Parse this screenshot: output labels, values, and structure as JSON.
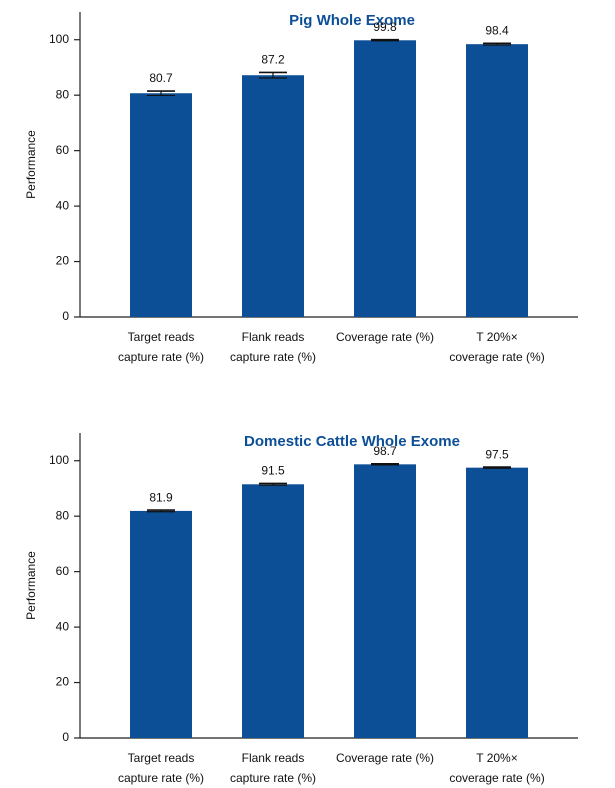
{
  "colors": {
    "bar": "#0d4f97",
    "title": "#0d4f97",
    "axis": "#222222"
  },
  "chart_data": [
    {
      "type": "bar",
      "title": "Pig Whole Exome",
      "ylabel": "Performance",
      "xlabel": "",
      "ylim": [
        0,
        110
      ],
      "yticks": [
        0,
        20,
        40,
        60,
        80,
        100
      ],
      "categories": [
        [
          "Target reads",
          "capture rate (%)"
        ],
        [
          "Flank reads",
          "capture rate (%)"
        ],
        [
          "Coverage rate (%)"
        ],
        [
          "T 20%×",
          "coverage rate (%)"
        ]
      ],
      "values": [
        80.7,
        87.2,
        99.8,
        98.4
      ],
      "value_labels": [
        "80.7",
        "87.2",
        "99.8",
        "98.4"
      ],
      "errors": [
        0.8,
        1.0,
        0.2,
        0.3
      ]
    },
    {
      "type": "bar",
      "title": "Domestic Cattle Whole Exome",
      "ylabel": "Performance",
      "xlabel": "",
      "ylim": [
        0,
        110
      ],
      "yticks": [
        0,
        20,
        40,
        60,
        80,
        100
      ],
      "categories": [
        [
          "Target reads",
          "capture rate (%)"
        ],
        [
          "Flank reads",
          "capture rate (%)"
        ],
        [
          "Coverage rate (%)"
        ],
        [
          "T 20%×",
          "coverage rate (%)"
        ]
      ],
      "values": [
        81.9,
        91.5,
        98.7,
        97.5
      ],
      "value_labels": [
        "81.9",
        "91.5",
        "98.7",
        "97.5"
      ],
      "errors": [
        0.3,
        0.3,
        0.2,
        0.2
      ]
    }
  ]
}
